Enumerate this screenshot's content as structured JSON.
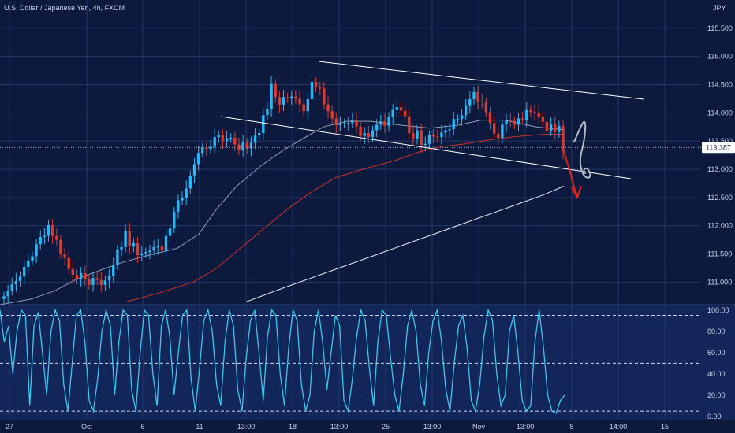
{
  "header": {
    "title": "U.S. Dollar / Japanese Yen, 4h, FXCM",
    "currency": "JPY"
  },
  "colors": {
    "background": "#0d1a3d",
    "oscillator_background": "#12265a",
    "grid": "#243766",
    "up_candle": "#29b6f6",
    "down_candle": "#e0392b",
    "ma_fast": "#90a0b8",
    "ma_mid": "#cf3030",
    "ma_slow": "#e8ecf2",
    "oscillator_line": "#3cc8f0",
    "trendline": "#ffffff",
    "price_label_bg": "#ffffff",
    "price_label_text": "#1b2a4e",
    "drawing_red": "#e32222",
    "drawing_grey": "#b4bcc8"
  },
  "chart_data": [
    {
      "type": "candlestick",
      "title": "U.S. Dollar / Japanese Yen, 4h, FXCM",
      "y_unit": "JPY",
      "ylim": [
        110.6,
        116.0
      ],
      "y_ticks": [
        "115.500",
        "115.000",
        "114.500",
        "114.000",
        "113.500",
        "113.000",
        "112.500",
        "112.000",
        "111.500",
        "111.000"
      ],
      "x_ticks": [
        "27",
        "Oct",
        "6",
        "11",
        "13:00",
        "18",
        "13:00",
        "25",
        "13:00",
        "Nov",
        "13:00",
        "8",
        "14:00",
        "15"
      ],
      "last_price": "113.387",
      "closes": [
        110.75,
        110.85,
        110.96,
        111.02,
        111.1,
        111.27,
        111.38,
        111.46,
        111.67,
        111.8,
        111.82,
        112.01,
        111.82,
        111.75,
        111.5,
        111.43,
        111.23,
        111.13,
        111.06,
        111.16,
        111.05,
        110.95,
        111.07,
        111.04,
        110.95,
        111.03,
        111.11,
        111.3,
        111.58,
        111.62,
        111.91,
        111.63,
        111.69,
        111.48,
        111.51,
        111.53,
        111.56,
        111.62,
        111.63,
        111.56,
        111.82,
        111.95,
        112.25,
        112.45,
        112.49,
        112.66,
        112.89,
        113.09,
        113.29,
        113.38,
        113.36,
        113.4,
        113.57,
        113.6,
        113.5,
        113.55,
        113.56,
        113.44,
        113.34,
        113.47,
        113.37,
        113.47,
        113.6,
        113.64,
        113.96,
        114.06,
        114.51,
        114.28,
        114.14,
        114.28,
        114.26,
        114.29,
        114.25,
        114.15,
        114.03,
        114.24,
        114.55,
        114.45,
        114.43,
        114.15,
        114.03,
        113.9,
        113.78,
        113.81,
        113.81,
        113.82,
        113.87,
        113.76,
        113.59,
        113.64,
        113.57,
        113.69,
        113.79,
        113.85,
        113.77,
        113.92,
        114.05,
        114.1,
        114.04,
        113.94,
        113.64,
        113.54,
        113.69,
        113.43,
        113.45,
        113.61,
        113.58,
        113.57,
        113.65,
        113.69,
        113.71,
        113.89,
        113.89,
        113.96,
        114.12,
        114.24,
        114.37,
        114.2,
        114.19,
        114.01,
        113.82,
        113.63,
        113.56,
        113.79,
        113.87,
        113.86,
        113.79,
        113.9,
        113.88,
        114.05,
        114.02,
        114.0,
        113.93,
        113.84,
        113.68,
        113.8,
        113.66,
        113.77,
        113.32
      ],
      "moving_averages": [
        {
          "id": "fast",
          "points": [
            [
              0,
              110.6
            ],
            [
              40,
              110.7
            ],
            [
              70,
              110.85
            ],
            [
              97,
              111.05
            ],
            [
              125,
              111.2
            ],
            [
              155,
              111.35
            ],
            [
              195,
              111.5
            ],
            [
              225,
              111.6
            ],
            [
              252,
              111.85
            ],
            [
              275,
              112.3
            ],
            [
              300,
              112.7
            ],
            [
              330,
              113.05
            ],
            [
              355,
              113.3
            ],
            [
              385,
              113.55
            ],
            [
              410,
              113.75
            ],
            [
              440,
              113.85
            ],
            [
              470,
              113.85
            ],
            [
              510,
              113.78
            ],
            [
              545,
              113.73
            ],
            [
              580,
              113.78
            ],
            [
              610,
              113.87
            ],
            [
              640,
              113.87
            ],
            [
              680,
              113.75
            ],
            [
              715,
              113.7
            ]
          ]
        },
        {
          "id": "mid",
          "points": [
            [
              160,
              110.65
            ],
            [
              200,
              110.8
            ],
            [
              245,
              111.0
            ],
            [
              275,
              111.25
            ],
            [
              305,
              111.6
            ],
            [
              335,
              111.95
            ],
            [
              365,
              112.3
            ],
            [
              395,
              112.6
            ],
            [
              425,
              112.85
            ],
            [
              460,
              113.0
            ],
            [
              500,
              113.15
            ],
            [
              530,
              113.3
            ],
            [
              560,
              113.4
            ],
            [
              590,
              113.45
            ],
            [
              620,
              113.52
            ],
            [
              655,
              113.58
            ],
            [
              690,
              113.62
            ],
            [
              715,
              113.62
            ]
          ]
        },
        {
          "id": "slow",
          "points": [
            [
              312,
              110.65
            ],
            [
              360,
              110.9
            ],
            [
              420,
              111.2
            ],
            [
              480,
              111.5
            ],
            [
              540,
              111.8
            ],
            [
              600,
              112.1
            ],
            [
              650,
              112.35
            ],
            [
              690,
              112.55
            ],
            [
              715,
              112.7
            ]
          ]
        }
      ]
    },
    {
      "type": "line",
      "title": "",
      "ylim": [
        -3,
        105
      ],
      "y_ticks": [
        "100.00",
        "80.00",
        "60.00",
        "40.00",
        "20.00",
        "0.00"
      ],
      "reference_lines": [
        95,
        50,
        5
      ],
      "values": [
        100,
        70,
        85,
        40,
        80,
        100,
        95,
        10,
        85,
        98,
        60,
        20,
        80,
        100,
        90,
        30,
        5,
        50,
        95,
        100,
        70,
        15,
        5,
        35,
        80,
        100,
        85,
        20,
        70,
        100,
        95,
        25,
        5,
        60,
        100,
        95,
        40,
        10,
        85,
        100,
        75,
        20,
        60,
        95,
        100,
        35,
        5,
        45,
        90,
        100,
        80,
        30,
        10,
        70,
        100,
        85,
        25,
        5,
        55,
        90,
        100,
        60,
        15,
        75,
        100,
        95,
        40,
        10,
        65,
        100,
        90,
        30,
        5,
        20,
        80,
        100,
        70,
        25,
        60,
        95,
        85,
        15,
        5,
        35,
        75,
        100,
        90,
        45,
        10,
        70,
        100,
        95,
        55,
        20,
        5,
        40,
        85,
        100,
        80,
        30,
        10,
        60,
        90,
        100,
        70,
        25,
        5,
        50,
        85,
        95,
        65,
        15,
        5,
        30,
        75,
        100,
        90,
        40,
        10,
        20,
        80,
        95,
        60,
        15,
        5,
        10,
        70,
        100,
        65,
        20,
        5,
        3,
        15,
        20
      ]
    }
  ]
}
